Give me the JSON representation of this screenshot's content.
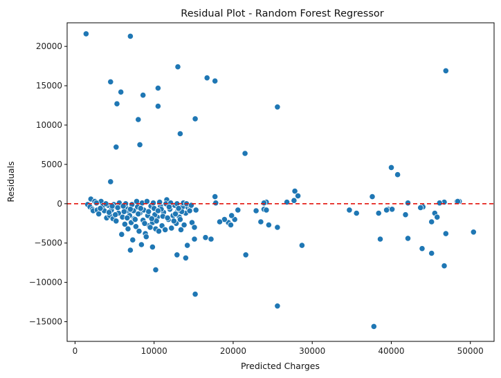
{
  "chart_data": {
    "type": "scatter",
    "title": "Residual Plot - Random Forest Regressor",
    "xlabel": "Predicted Charges",
    "ylabel": "Residuals",
    "xlim": [
      -1000,
      53000
    ],
    "ylim": [
      -17500,
      23000
    ],
    "xticks": [
      0,
      10000,
      20000,
      30000,
      40000,
      50000
    ],
    "yticks": [
      -15000,
      -10000,
      -5000,
      0,
      5000,
      10000,
      15000,
      20000
    ],
    "reference_line": {
      "y": 0,
      "style": "dashed",
      "color": "#e3120b"
    },
    "marker_color": "#1f77b4",
    "grid": false,
    "points": [
      [
        1400,
        21600
      ],
      [
        7000,
        21300
      ],
      [
        13000,
        17400
      ],
      [
        46900,
        16900
      ],
      [
        16700,
        16000
      ],
      [
        17700,
        15600
      ],
      [
        4500,
        15500
      ],
      [
        10500,
        14700
      ],
      [
        5800,
        14200
      ],
      [
        8600,
        13800
      ],
      [
        5300,
        12700
      ],
      [
        10500,
        12400
      ],
      [
        25600,
        12300
      ],
      [
        15200,
        10800
      ],
      [
        8000,
        10700
      ],
      [
        13300,
        8900
      ],
      [
        8200,
        7500
      ],
      [
        5200,
        7200
      ],
      [
        21500,
        6400
      ],
      [
        40000,
        4600
      ],
      [
        40800,
        3700
      ],
      [
        4500,
        2800
      ],
      [
        27800,
        1600
      ],
      [
        28200,
        1000
      ],
      [
        17700,
        900
      ],
      [
        37600,
        900
      ],
      [
        27700,
        400
      ],
      [
        26800,
        200
      ],
      [
        46700,
        200
      ],
      [
        48300,
        300
      ],
      [
        48600,
        300
      ],
      [
        48400,
        300
      ],
      [
        42100,
        100
      ],
      [
        46100,
        100
      ],
      [
        44000,
        -300
      ],
      [
        44000,
        -400
      ],
      [
        43700,
        -500
      ],
      [
        39600,
        -700
      ],
      [
        40100,
        -700
      ],
      [
        39400,
        -800
      ],
      [
        34700,
        -800
      ],
      [
        35600,
        -1200
      ],
      [
        38400,
        -1200
      ],
      [
        41800,
        -1400
      ],
      [
        45500,
        -1200
      ],
      [
        45800,
        -1700
      ],
      [
        45100,
        -2300
      ],
      [
        42100,
        -4400
      ],
      [
        38600,
        -4500
      ],
      [
        43900,
        -5700
      ],
      [
        45100,
        -6300
      ],
      [
        46900,
        -3800
      ],
      [
        50400,
        -3600
      ],
      [
        46700,
        -7900
      ],
      [
        37800,
        -15600
      ],
      [
        25600,
        -13000
      ],
      [
        15200,
        -11500
      ],
      [
        10200,
        -8400
      ],
      [
        14000,
        -6900
      ],
      [
        12900,
        -6500
      ],
      [
        21600,
        -6500
      ],
      [
        7000,
        -5900
      ],
      [
        14200,
        -5300
      ],
      [
        28700,
        -5300
      ],
      [
        9800,
        -5500
      ],
      [
        16500,
        -4300
      ],
      [
        17200,
        -4500
      ],
      [
        15100,
        -4500
      ],
      [
        25600,
        -3000
      ],
      [
        24500,
        -2700
      ],
      [
        23500,
        -2300
      ],
      [
        20200,
        -2000
      ],
      [
        19800,
        -1500
      ],
      [
        19400,
        -2400
      ],
      [
        19700,
        -2700
      ],
      [
        18900,
        -2000
      ],
      [
        18300,
        -2300
      ],
      [
        20600,
        -800
      ],
      [
        22900,
        -900
      ],
      [
        23900,
        -700
      ],
      [
        24200,
        -800
      ],
      [
        24200,
        200
      ],
      [
        23900,
        100
      ],
      [
        17800,
        100
      ],
      [
        1600,
        -100
      ],
      [
        1900,
        -400
      ],
      [
        2200,
        -700
      ],
      [
        2000,
        600
      ],
      [
        2500,
        300
      ],
      [
        2300,
        -900
      ],
      [
        2800,
        -800
      ],
      [
        3000,
        -1300
      ],
      [
        3300,
        300
      ],
      [
        3500,
        -300
      ],
      [
        3700,
        -900
      ],
      [
        4000,
        -1800
      ],
      [
        4200,
        -200
      ],
      [
        4400,
        -1500
      ],
      [
        4600,
        -800
      ],
      [
        4800,
        -1900
      ],
      [
        5000,
        -300
      ],
      [
        5200,
        -2200
      ],
      [
        5500,
        -1200
      ],
      [
        5700,
        -300
      ],
      [
        5900,
        -3900
      ],
      [
        6000,
        -1700
      ],
      [
        6300,
        -2600
      ],
      [
        6500,
        -600
      ],
      [
        6700,
        -3200
      ],
      [
        6800,
        -1000
      ],
      [
        7100,
        -2400
      ],
      [
        7300,
        -4600
      ],
      [
        7500,
        -1900
      ],
      [
        7700,
        -2900
      ],
      [
        7900,
        -400
      ],
      [
        8100,
        -3500
      ],
      [
        8200,
        -1200
      ],
      [
        8400,
        -5200
      ],
      [
        8600,
        -2100
      ],
      [
        8700,
        -800
      ],
      [
        8900,
        -3800
      ],
      [
        9000,
        -4200
      ],
      [
        9200,
        -1500
      ],
      [
        9400,
        -2800
      ],
      [
        9600,
        -300
      ],
      [
        9800,
        -2400
      ],
      [
        10000,
        -600
      ],
      [
        10200,
        -3200
      ],
      [
        10400,
        -1700
      ],
      [
        10600,
        -3500
      ],
      [
        10800,
        -300
      ],
      [
        11000,
        -2800
      ],
      [
        11200,
        -1100
      ],
      [
        11400,
        -3300
      ],
      [
        11600,
        500
      ],
      [
        11800,
        -2000
      ],
      [
        12000,
        -700
      ],
      [
        12200,
        -3100
      ],
      [
        12400,
        -1500
      ],
      [
        12600,
        -200
      ],
      [
        12800,
        -2500
      ],
      [
        13000,
        -900
      ],
      [
        13200,
        -1700
      ],
      [
        13400,
        -3300
      ],
      [
        13600,
        -400
      ],
      [
        13800,
        -2700
      ],
      [
        14000,
        -1200
      ],
      [
        14300,
        -500
      ],
      [
        14600,
        -400
      ],
      [
        14800,
        -2400
      ],
      [
        15100,
        -3000
      ],
      [
        15300,
        -800
      ],
      [
        2700,
        100
      ],
      [
        3900,
        0
      ],
      [
        4900,
        -100
      ],
      [
        5600,
        100
      ],
      [
        6400,
        0
      ],
      [
        7200,
        -100
      ],
      [
        7800,
        300
      ],
      [
        8500,
        100
      ],
      [
        9100,
        300
      ],
      [
        9900,
        100
      ],
      [
        10700,
        200
      ],
      [
        11500,
        0
      ],
      [
        12100,
        100
      ],
      [
        12900,
        0
      ],
      [
        13700,
        100
      ],
      [
        14100,
        0
      ],
      [
        5400,
        -500
      ],
      [
        6200,
        -1000
      ],
      [
        6900,
        -1500
      ],
      [
        7600,
        -2000
      ],
      [
        8800,
        -2500
      ],
      [
        9500,
        -3000
      ],
      [
        10300,
        -2200
      ],
      [
        11100,
        -1600
      ],
      [
        12700,
        -1300
      ],
      [
        13500,
        -1000
      ],
      [
        3200,
        -600
      ],
      [
        4300,
        -1100
      ],
      [
        5100,
        -1400
      ],
      [
        6600,
        -1800
      ],
      [
        7400,
        -900
      ],
      [
        8300,
        -600
      ],
      [
        9300,
        -1000
      ],
      [
        10100,
        -1400
      ],
      [
        10900,
        -700
      ],
      [
        11700,
        -1800
      ],
      [
        12500,
        -2200
      ],
      [
        13300,
        -2000
      ],
      [
        14500,
        -900
      ],
      [
        4700,
        -300
      ],
      [
        6100,
        -300
      ],
      [
        7000,
        -700
      ],
      [
        8000,
        -1300
      ],
      [
        9700,
        -1900
      ],
      [
        10500,
        -900
      ],
      [
        11900,
        -400
      ],
      [
        13100,
        -600
      ],
      [
        14700,
        -200
      ]
    ]
  }
}
